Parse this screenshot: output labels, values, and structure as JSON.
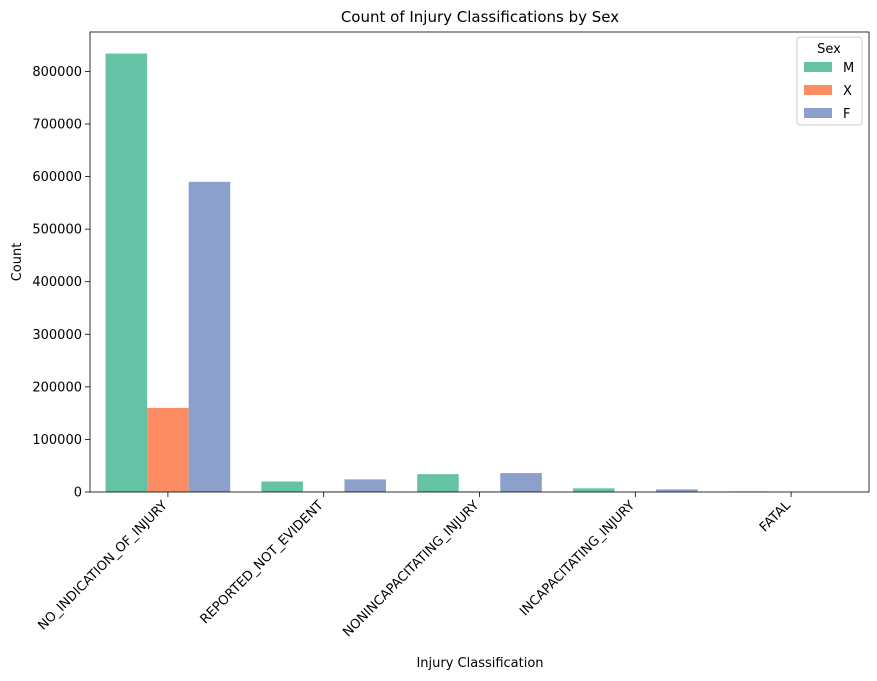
{
  "chart_data": {
    "type": "bar",
    "title": "Count of Injury Classifications by Sex",
    "xlabel": "Injury Classification",
    "ylabel": "Count",
    "ylim": [
      0,
      875000
    ],
    "yticks": [
      0,
      100000,
      200000,
      300000,
      400000,
      500000,
      600000,
      700000,
      800000
    ],
    "categories": [
      "NO_INDICATION_OF_INJURY",
      "REPORTED_NOT_EVIDENT",
      "NONINCAPACITATING_INJURY",
      "INCAPACITATING_INJURY",
      "FATAL"
    ],
    "grid": false,
    "legend": {
      "title": "Sex",
      "position": "top-right"
    },
    "series": [
      {
        "name": "M",
        "color": "#66c2a5",
        "values": [
          834000,
          20000,
          34000,
          7000,
          1000
        ]
      },
      {
        "name": "X",
        "color": "#fc8d62",
        "values": [
          160000,
          1000,
          1000,
          200,
          50
        ]
      },
      {
        "name": "F",
        "color": "#8da0cb",
        "values": [
          590000,
          24000,
          36000,
          5000,
          500
        ]
      }
    ]
  }
}
